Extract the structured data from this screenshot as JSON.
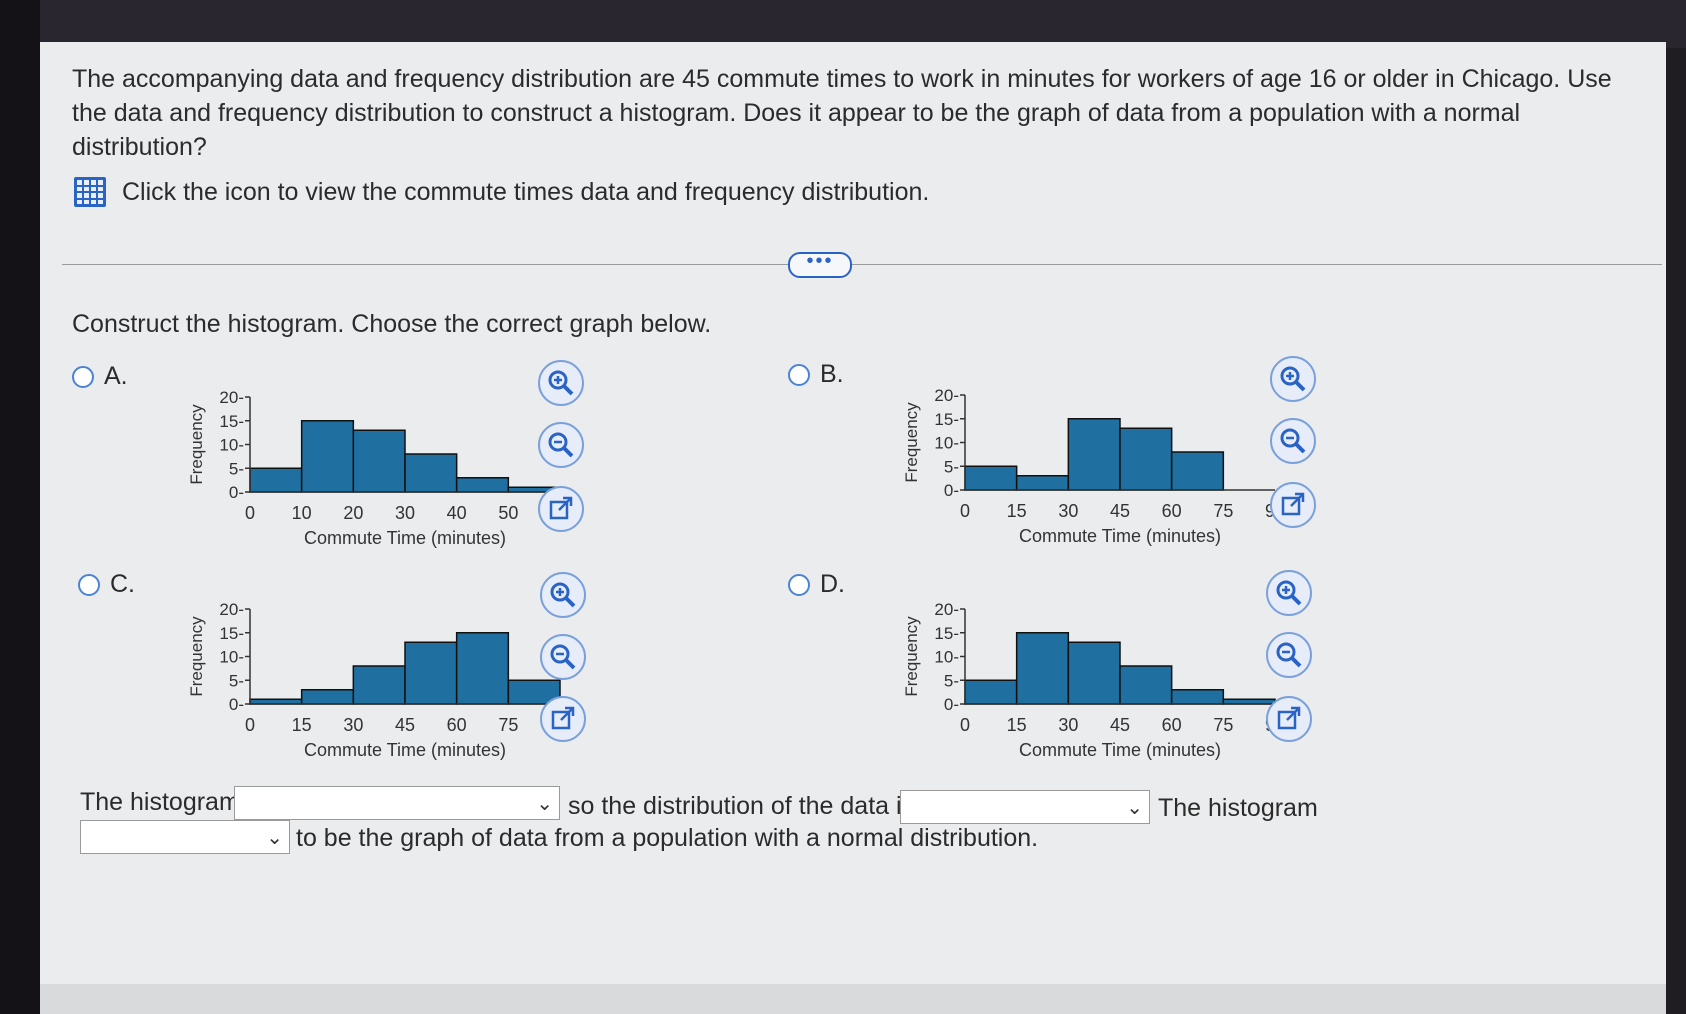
{
  "question": {
    "text": "The accompanying data and frequency distribution are 45 commute times to work in minutes for workers of age 16 or older in Chicago. Use the data and frequency distribution to construct a histogram. Does it appear to be the graph of data from a population with a normal distribution?",
    "icon_link_text": "Click the icon to view the commute times data and frequency distribution.",
    "more_button": "•••"
  },
  "prompt": "Construct the histogram. Choose the correct graph below.",
  "options": [
    {
      "label": "A."
    },
    {
      "label": "B."
    },
    {
      "label": "C."
    },
    {
      "label": "D."
    }
  ],
  "answer_sentence": {
    "part1": "The histogram",
    "part2": "so the distribution of the data is",
    "part3": "The histogram",
    "part4": "to be the graph of data from a population with a normal distribution."
  },
  "chart_data": [
    {
      "type": "bar",
      "option": "A",
      "xlabel": "Commute Time (minutes)",
      "ylabel": "Frequency",
      "x_ticks": [
        "0",
        "10",
        "20",
        "30",
        "40",
        "50",
        "60"
      ],
      "y_ticks": [
        "0",
        "5",
        "10",
        "15",
        "20"
      ],
      "bin_width": 10,
      "bin_starts": [
        0,
        10,
        20,
        30,
        40,
        50
      ],
      "values": [
        5,
        15,
        13,
        8,
        3,
        1
      ],
      "ylim": [
        0,
        20
      ],
      "xlim": [
        0,
        60
      ]
    },
    {
      "type": "bar",
      "option": "B",
      "xlabel": "Commute Time (minutes)",
      "ylabel": "Frequency",
      "x_ticks": [
        "0",
        "15",
        "30",
        "45",
        "60",
        "75",
        "90"
      ],
      "y_ticks": [
        "0",
        "5",
        "10",
        "15",
        "20"
      ],
      "bin_width": 15,
      "bin_starts": [
        0,
        15,
        30,
        45,
        60
      ],
      "values": [
        5,
        3,
        15,
        13,
        8
      ],
      "ylim": [
        0,
        20
      ],
      "xlim": [
        0,
        90
      ]
    },
    {
      "type": "bar",
      "option": "C",
      "xlabel": "Commute Time (minutes)",
      "ylabel": "Frequency",
      "x_ticks": [
        "0",
        "15",
        "30",
        "45",
        "60",
        "75",
        "90"
      ],
      "y_ticks": [
        "0",
        "5",
        "10",
        "15",
        "20"
      ],
      "bin_width": 15,
      "bin_starts": [
        0,
        15,
        30,
        45,
        60,
        75
      ],
      "values": [
        1,
        3,
        8,
        13,
        15,
        5
      ],
      "ylim": [
        0,
        20
      ],
      "xlim": [
        0,
        90
      ]
    },
    {
      "type": "bar",
      "option": "D",
      "xlabel": "Commute Time (minutes)",
      "ylabel": "Frequency",
      "x_ticks": [
        "0",
        "15",
        "30",
        "45",
        "60",
        "75",
        "90"
      ],
      "y_ticks": [
        "0",
        "5",
        "10",
        "15",
        "20"
      ],
      "bin_width": 15,
      "bin_starts": [
        0,
        15,
        30,
        45,
        60,
        75
      ],
      "values": [
        5,
        15,
        13,
        8,
        3,
        1
      ],
      "ylim": [
        0,
        20
      ],
      "xlim": [
        0,
        90
      ]
    }
  ],
  "colors": {
    "bar_fill": "#1f6fa0",
    "bar_stroke": "#111111",
    "accent": "#2a63c6"
  }
}
